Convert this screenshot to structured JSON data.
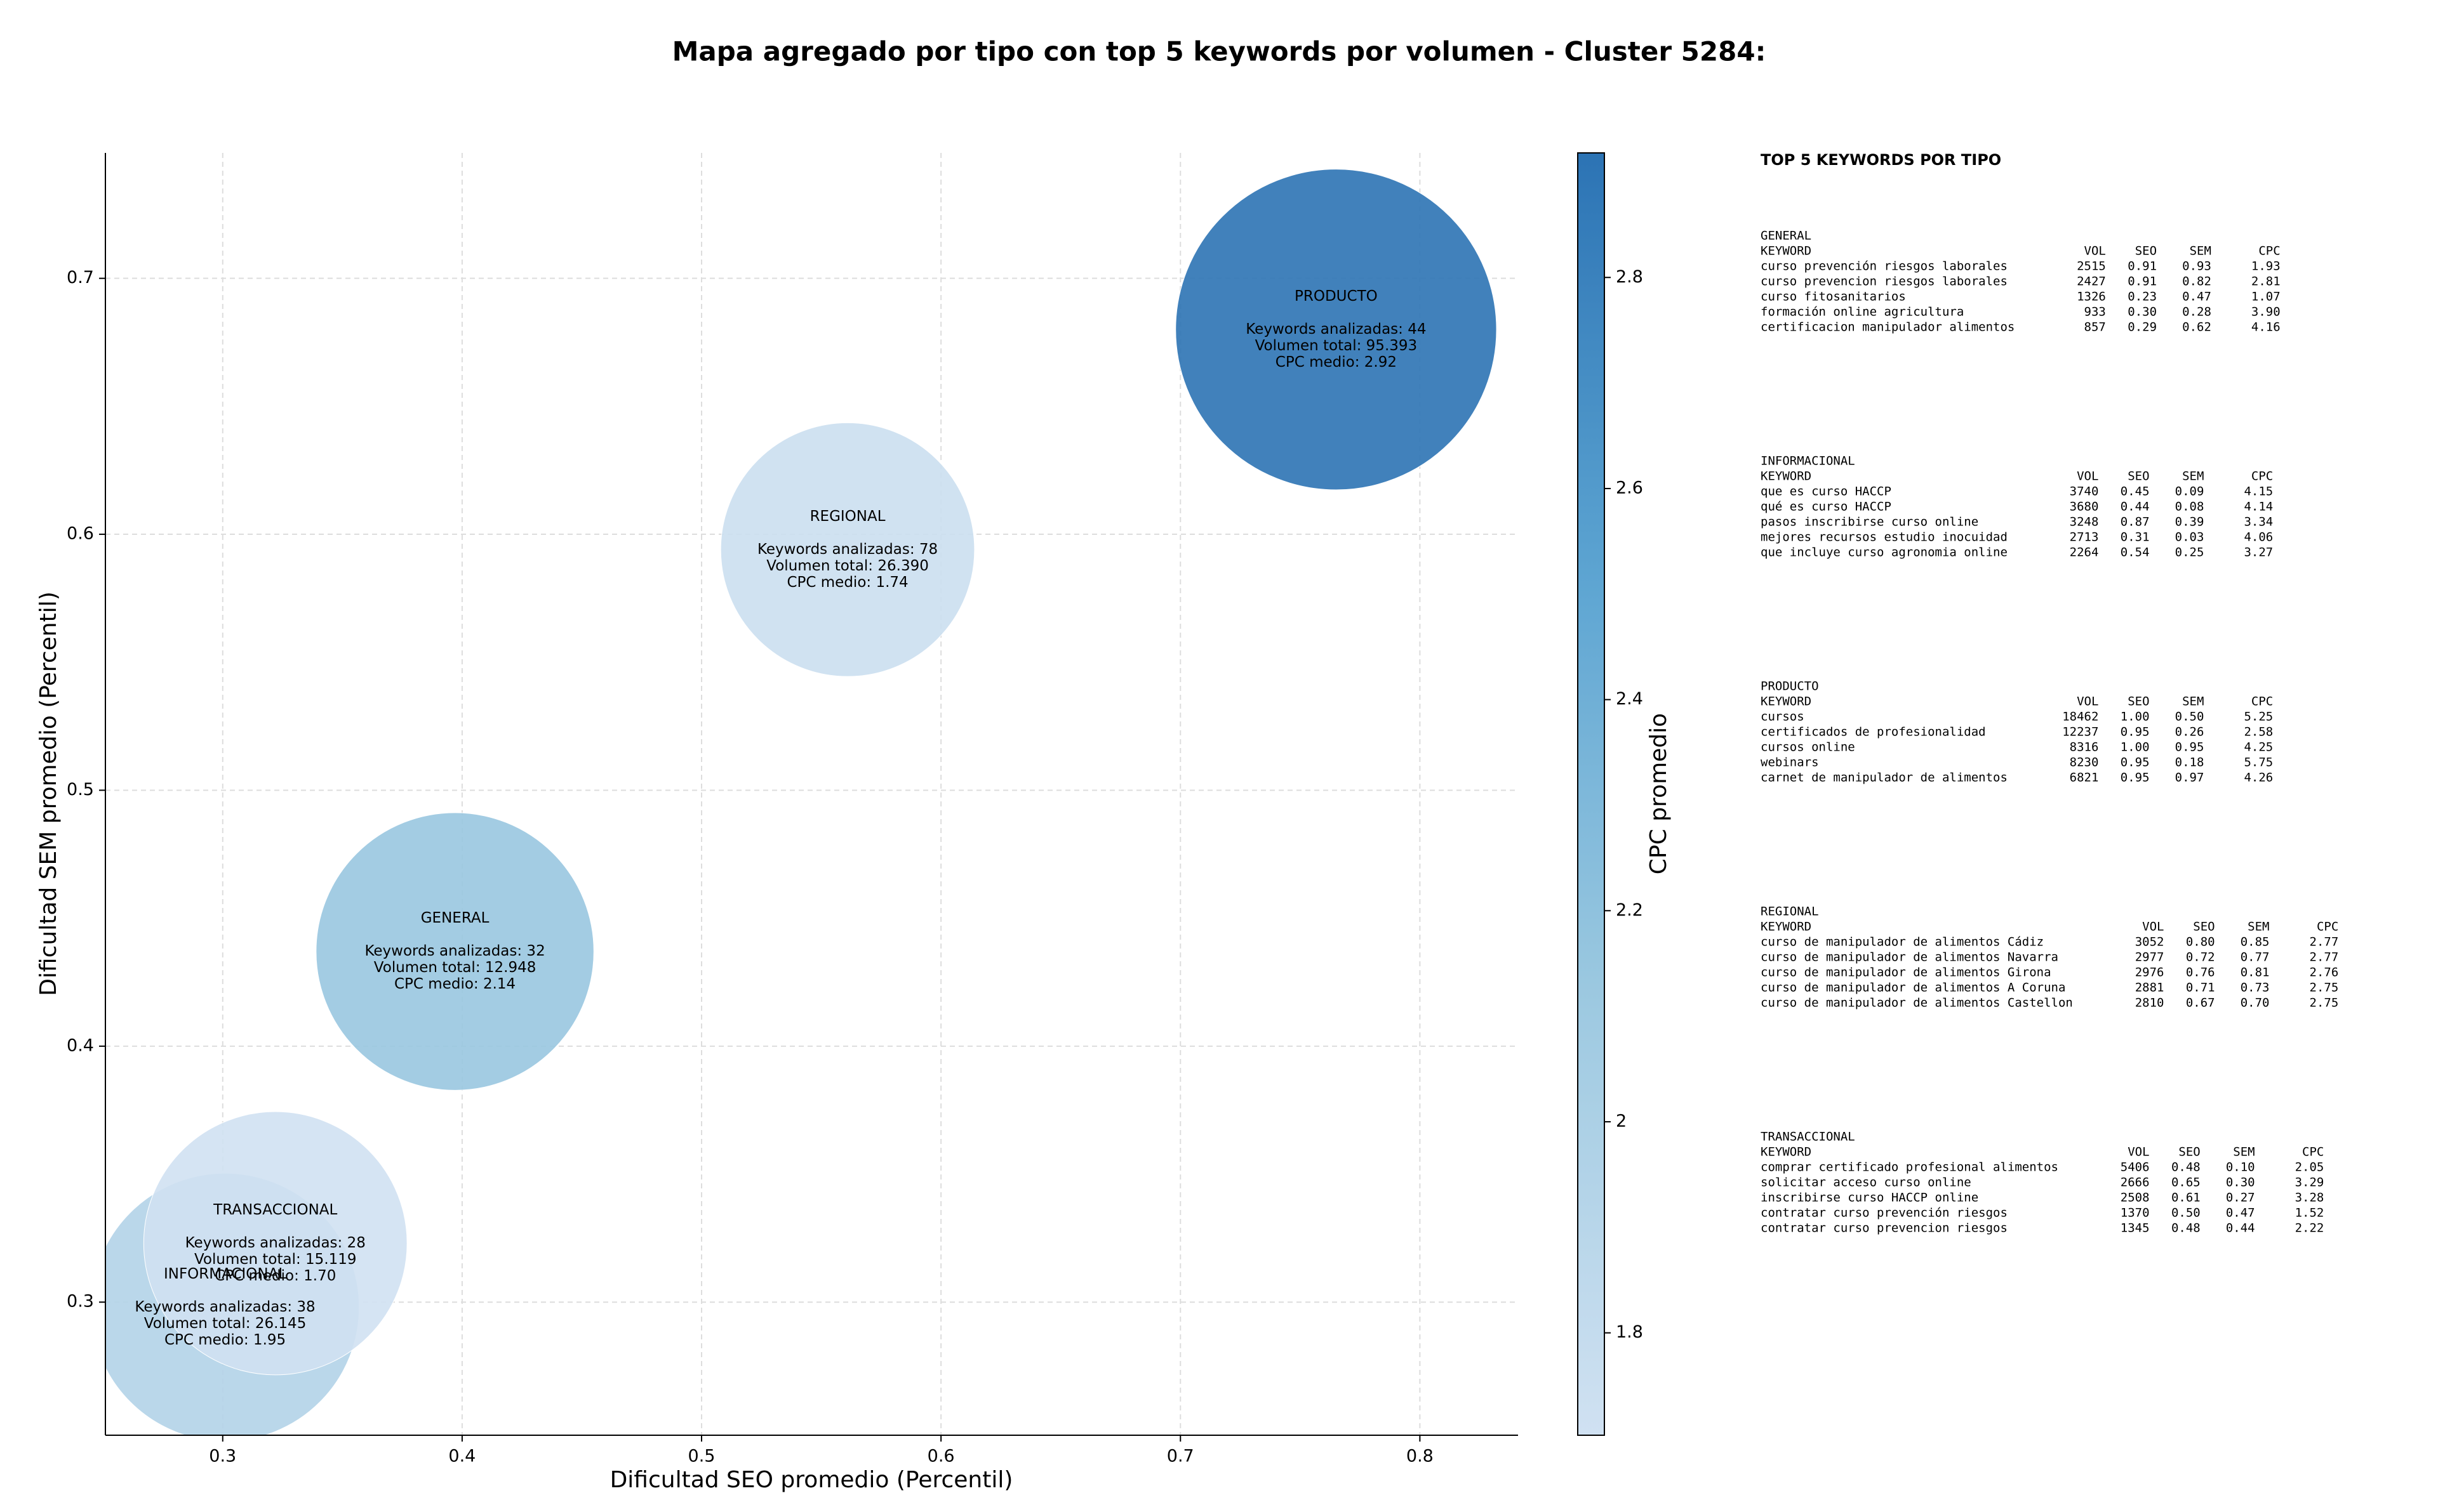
{
  "chart_data": {
    "type": "bubble",
    "title": "Mapa agregado por tipo con top 5 keywords por volumen - Cluster 5284:",
    "x_label": "Dificultad SEO promedio (Percentil)",
    "y_label": "Dificultad SEM promedio (Percentil)",
    "colorbar_label": "CPC promedio",
    "xlim": [
      0.251,
      0.841
    ],
    "ylim": [
      0.248,
      0.749
    ],
    "xticks": [
      0.3,
      0.4,
      0.5,
      0.6,
      0.7,
      0.8
    ],
    "yticks": [
      0.3,
      0.4,
      0.5,
      0.6,
      0.7
    ],
    "clim": [
      1.703,
      2.918
    ],
    "cticks": [
      1.8,
      2.0,
      2.2,
      2.4,
      2.6,
      2.8
    ],
    "colormap": [
      "#d0e1f2",
      "#9ecae1",
      "#5da5d2",
      "#2c73b4"
    ],
    "grid": true,
    "names": [
      "GENERAL",
      "INFORMACIONAL",
      "PRODUCTO",
      "REGIONAL",
      "TRANSACCIONAL"
    ],
    "x": [
      0.397,
      0.301,
      0.765,
      0.561,
      0.322
    ],
    "y": [
      0.437,
      0.298,
      0.68,
      0.594,
      0.323
    ],
    "sizes": [
      0.058,
      0.056,
      0.067,
      0.053,
      0.055
    ],
    "cpc": [
      2.14,
      1.95,
      2.92,
      1.74,
      1.7
    ],
    "details": [
      [
        "Keywords analizadas: 32",
        "Volumen total: 12.948",
        "CPC medio: 2.14"
      ],
      [
        "Keywords analizadas: 38",
        "Volumen total: 26.145",
        "CPC medio: 1.95"
      ],
      [
        "Keywords analizadas: 44",
        "Volumen total: 95.393",
        "CPC medio: 2.92"
      ],
      [
        "Keywords analizadas: 78",
        "Volumen total: 26.390",
        "CPC medio: 1.74"
      ],
      [
        "Keywords analizadas: 28",
        "Volumen total: 15.119",
        "CPC medio: 1.70"
      ]
    ]
  },
  "keyword_tables": {
    "title": "TOP 5 KEYWORDS POR TIPO",
    "header": [
      "KEYWORD",
      "VOL",
      "SEO",
      "SEM",
      "CPC"
    ],
    "groups": [
      {
        "name": "GENERAL",
        "rows": [
          [
            "curso prevención riesgos laborales",
            "2515",
            "0.91",
            "0.93",
            "1.93"
          ],
          [
            "curso prevencion riesgos laborales",
            "2427",
            "0.91",
            "0.82",
            "2.81"
          ],
          [
            "curso fitosanitarios",
            "1326",
            "0.23",
            "0.47",
            "1.07"
          ],
          [
            "formación online agricultura",
            "933",
            "0.30",
            "0.28",
            "3.90"
          ],
          [
            "certificacion manipulador alimentos",
            "857",
            "0.29",
            "0.62",
            "4.16"
          ]
        ]
      },
      {
        "name": "INFORMACIONAL",
        "rows": [
          [
            "que es curso HACCP",
            "3740",
            "0.45",
            "0.09",
            "4.15"
          ],
          [
            "qué es curso HACCP",
            "3680",
            "0.44",
            "0.08",
            "4.14"
          ],
          [
            "pasos inscribirse curso online",
            "3248",
            "0.87",
            "0.39",
            "3.34"
          ],
          [
            "mejores recursos estudio inocuidad",
            "2713",
            "0.31",
            "0.03",
            "4.06"
          ],
          [
            "que incluye curso agronomia online",
            "2264",
            "0.54",
            "0.25",
            "3.27"
          ]
        ]
      },
      {
        "name": "PRODUCTO",
        "rows": [
          [
            "cursos",
            "18462",
            "1.00",
            "0.50",
            "5.25"
          ],
          [
            "certificados de profesionalidad",
            "12237",
            "0.95",
            "0.26",
            "2.58"
          ],
          [
            "cursos online",
            "8316",
            "1.00",
            "0.95",
            "4.25"
          ],
          [
            "webinars",
            "8230",
            "0.95",
            "0.18",
            "5.75"
          ],
          [
            "carnet de manipulador de alimentos",
            "6821",
            "0.95",
            "0.97",
            "4.26"
          ]
        ]
      },
      {
        "name": "REGIONAL",
        "rows": [
          [
            "curso de manipulador de alimentos Cádiz",
            "3052",
            "0.80",
            "0.85",
            "2.77"
          ],
          [
            "curso de manipulador de alimentos Navarra",
            "2977",
            "0.72",
            "0.77",
            "2.77"
          ],
          [
            "curso de manipulador de alimentos Girona",
            "2976",
            "0.76",
            "0.81",
            "2.76"
          ],
          [
            "curso de manipulador de alimentos A Coruna",
            "2881",
            "0.71",
            "0.73",
            "2.75"
          ],
          [
            "curso de manipulador de alimentos Castellon",
            "2810",
            "0.67",
            "0.70",
            "2.75"
          ]
        ]
      },
      {
        "name": "TRANSACCIONAL",
        "rows": [
          [
            "comprar certificado profesional alimentos",
            "5406",
            "0.48",
            "0.10",
            "2.05"
          ],
          [
            "solicitar acceso curso online",
            "2666",
            "0.65",
            "0.30",
            "3.29"
          ],
          [
            "inscribirse curso HACCP online",
            "2508",
            "0.61",
            "0.27",
            "3.28"
          ],
          [
            "contratar curso prevención riesgos",
            "1370",
            "0.50",
            "0.47",
            "1.52"
          ],
          [
            "contratar curso prevencion riesgos",
            "1345",
            "0.48",
            "0.44",
            "2.22"
          ]
        ]
      }
    ]
  }
}
